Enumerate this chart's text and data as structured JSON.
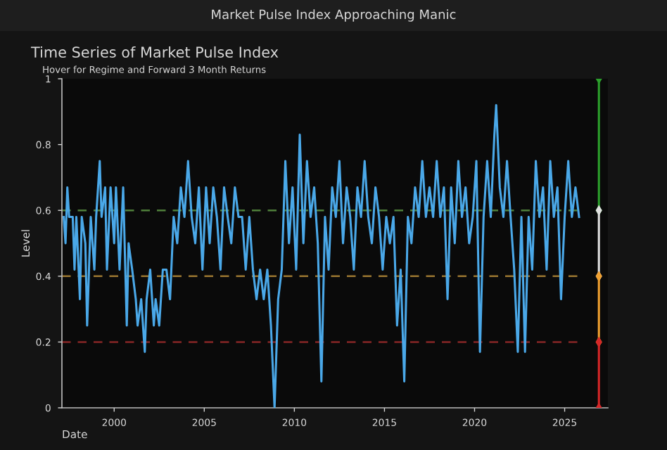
{
  "chart_data": {
    "type": "line",
    "title": "Time Series of Market Pulse Index",
    "subtitle": "Hover for Regime and Forward 3 Month Returns",
    "annotations": [
      "Market Pulse Index Approaching Manic"
    ],
    "xlabel": "Date",
    "ylabel": "Level",
    "xlim": [
      1997.1,
      2027.4
    ],
    "xticks": [
      2000,
      2005,
      2010,
      2015,
      2020,
      2025
    ],
    "ylim": [
      0,
      1
    ],
    "yticks": [
      0,
      0.2,
      0.4,
      0.6,
      0.8,
      1
    ],
    "grid": false,
    "legend": false,
    "ref_lines": [
      {
        "axis": "y",
        "value": 0.6,
        "color": "#4f7f3a",
        "line_style": "dashed"
      },
      {
        "axis": "y",
        "value": 0.4,
        "color": "#9a7630",
        "line_style": "dashed"
      },
      {
        "axis": "y",
        "value": 0.2,
        "color": "#862626",
        "line_style": "dashed"
      }
    ],
    "series": [
      {
        "color": "#4aa8e8",
        "marker": "none",
        "x": [
          1997.2,
          1997.3,
          1997.4,
          1997.5,
          1997.7,
          1997.8,
          1997.9,
          1998.1,
          1998.2,
          1998.4,
          1998.5,
          1998.7,
          1998.9,
          1999.0,
          1999.2,
          1999.3,
          1999.5,
          1999.6,
          1999.8,
          2000.0,
          2000.1,
          2000.3,
          2000.5,
          2000.7,
          2000.8,
          2001.0,
          2001.2,
          2001.3,
          2001.5,
          2001.7,
          2001.8,
          2002.0,
          2002.2,
          2002.3,
          2002.5,
          2002.7,
          2002.9,
          2003.1,
          2003.3,
          2003.5,
          2003.7,
          2003.9,
          2004.1,
          2004.3,
          2004.5,
          2004.7,
          2004.9,
          2005.1,
          2005.3,
          2005.5,
          2005.7,
          2005.9,
          2006.1,
          2006.3,
          2006.5,
          2006.7,
          2006.9,
          2007.1,
          2007.3,
          2007.5,
          2007.7,
          2007.9,
          2008.1,
          2008.3,
          2008.5,
          2008.7,
          2008.9,
          2009.1,
          2009.3,
          2009.5,
          2009.7,
          2009.9,
          2010.1,
          2010.3,
          2010.5,
          2010.7,
          2010.9,
          2011.1,
          2011.3,
          2011.5,
          2011.7,
          2011.9,
          2012.1,
          2012.3,
          2012.5,
          2012.7,
          2012.9,
          2013.1,
          2013.3,
          2013.5,
          2013.7,
          2013.9,
          2014.1,
          2014.3,
          2014.5,
          2014.7,
          2014.9,
          2015.1,
          2015.3,
          2015.5,
          2015.7,
          2015.9,
          2016.1,
          2016.3,
          2016.5,
          2016.7,
          2016.9,
          2017.1,
          2017.3,
          2017.5,
          2017.7,
          2017.9,
          2018.1,
          2018.3,
          2018.5,
          2018.7,
          2018.9,
          2019.1,
          2019.3,
          2019.5,
          2019.7,
          2019.9,
          2020.1,
          2020.3,
          2020.5,
          2020.7,
          2020.9,
          2021.1,
          2021.2,
          2021.4,
          2021.6,
          2021.8,
          2022.0,
          2022.2,
          2022.4,
          2022.6,
          2022.8,
          2023.0,
          2023.2,
          2023.4,
          2023.6,
          2023.8,
          2024.0,
          2024.2,
          2024.4,
          2024.6,
          2024.8,
          2025.0,
          2025.2,
          2025.4,
          2025.6,
          2025.8
        ],
        "values": [
          0.58,
          0.5,
          0.67,
          0.58,
          0.58,
          0.42,
          0.58,
          0.33,
          0.58,
          0.5,
          0.25,
          0.58,
          0.42,
          0.58,
          0.75,
          0.58,
          0.67,
          0.42,
          0.67,
          0.5,
          0.67,
          0.42,
          0.67,
          0.25,
          0.5,
          0.42,
          0.33,
          0.25,
          0.33,
          0.17,
          0.33,
          0.42,
          0.25,
          0.33,
          0.25,
          0.42,
          0.42,
          0.33,
          0.58,
          0.5,
          0.67,
          0.58,
          0.75,
          0.58,
          0.5,
          0.67,
          0.42,
          0.67,
          0.5,
          0.67,
          0.58,
          0.42,
          0.67,
          0.58,
          0.5,
          0.67,
          0.58,
          0.58,
          0.42,
          0.58,
          0.42,
          0.33,
          0.42,
          0.33,
          0.42,
          0.25,
          0.0,
          0.33,
          0.42,
          0.75,
          0.5,
          0.67,
          0.42,
          0.83,
          0.5,
          0.75,
          0.58,
          0.67,
          0.5,
          0.08,
          0.58,
          0.42,
          0.67,
          0.58,
          0.75,
          0.5,
          0.67,
          0.58,
          0.42,
          0.67,
          0.58,
          0.75,
          0.58,
          0.5,
          0.67,
          0.58,
          0.42,
          0.58,
          0.5,
          0.58,
          0.25,
          0.42,
          0.08,
          0.58,
          0.5,
          0.67,
          0.58,
          0.75,
          0.58,
          0.67,
          0.58,
          0.75,
          0.58,
          0.67,
          0.33,
          0.67,
          0.5,
          0.75,
          0.58,
          0.67,
          0.5,
          0.58,
          0.75,
          0.17,
          0.58,
          0.75,
          0.58,
          0.83,
          0.92,
          0.67,
          0.58,
          0.75,
          0.58,
          0.42,
          0.17,
          0.58,
          0.17,
          0.58,
          0.42,
          0.75,
          0.58,
          0.67,
          0.42,
          0.75,
          0.58,
          0.67,
          0.33,
          0.58,
          0.75,
          0.58,
          0.67,
          0.58
        ]
      },
      {
        "type": "line",
        "color": "#2ca02c",
        "marker": "diamond",
        "x": [
          2026.9,
          2026.9
        ],
        "values": [
          0.6,
          1
        ]
      },
      {
        "type": "line",
        "color": "#e0e0e0",
        "marker": "diamond",
        "x": [
          2026.9,
          2026.9
        ],
        "values": [
          0.4,
          0.6
        ]
      },
      {
        "type": "line",
        "color": "#f0a030",
        "marker": "diamond",
        "x": [
          2026.9,
          2026.9
        ],
        "values": [
          0.2,
          0.4
        ]
      },
      {
        "type": "line",
        "color": "#d62728",
        "marker": "diamond",
        "x": [
          2026.9,
          2026.9
        ],
        "values": [
          0,
          0.2
        ]
      }
    ]
  }
}
